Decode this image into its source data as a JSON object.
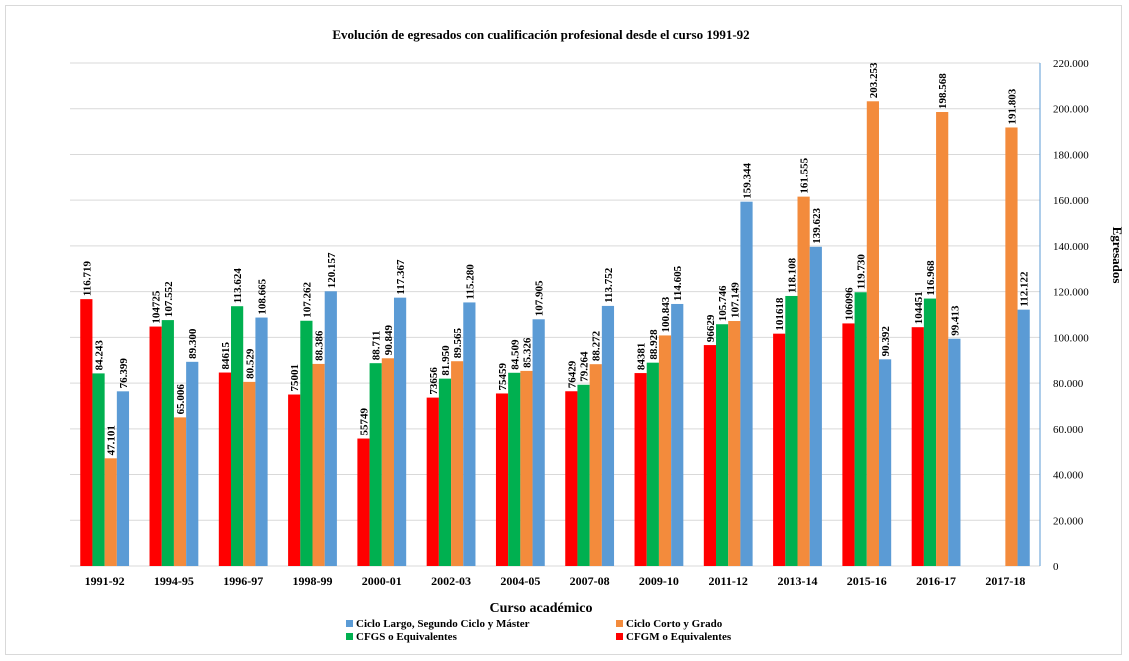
{
  "chart_data": {
    "type": "bar",
    "title": "Evolución de egresados con cualificación profesional desde el curso 1991-92",
    "xlabel": "Curso académico",
    "ylabel": "Egresados",
    "ylim": [
      0,
      220000
    ],
    "yticks": [
      "0",
      "20.000",
      "40.000",
      "60.000",
      "80.000",
      "100.000",
      "120.000",
      "140.000",
      "160.000",
      "180.000",
      "200.000",
      "220.000"
    ],
    "grid": true,
    "legend_position": "bottom",
    "categories": [
      "1991-92",
      "1994-95",
      "1996-97",
      "1998-99",
      "2000-01",
      "2002-03",
      "2004-05",
      "2007-08",
      "2009-10",
      "2011-12",
      "2013-14",
      "2015-16",
      "2016-17",
      "2017-18"
    ],
    "series": [
      {
        "name": "CFGM o Equivalentes",
        "color": "#ff0000",
        "values": [
          116719,
          104725,
          84615,
          75001,
          55749,
          73656,
          75459,
          76429,
          84381,
          96629,
          101618,
          106096,
          104451,
          null
        ],
        "labels": [
          "116.719",
          "104725",
          "84615",
          "75001",
          "55749",
          "73656",
          "75459",
          "76429",
          "84381",
          "96629",
          "101618",
          "106096",
          "104451",
          ""
        ]
      },
      {
        "name": "CFGS o Equivalentes",
        "color": "#00b050",
        "values": [
          84243,
          107552,
          113624,
          107262,
          88711,
          81950,
          84509,
          79264,
          88928,
          105746,
          118108,
          119730,
          116968,
          null
        ],
        "labels": [
          "84.243",
          "107.552",
          "113.624",
          "107.262",
          "88.711",
          "81.950",
          "84.509",
          "79.264",
          "88.928",
          "105.746",
          "118.108",
          "119.730",
          "116.968",
          ""
        ]
      },
      {
        "name": "Ciclo Corto y Grado",
        "color": "#f38b3c",
        "values": [
          47101,
          65006,
          80529,
          88386,
          90849,
          89565,
          85326,
          88272,
          100843,
          107149,
          161555,
          203253,
          198568,
          191803
        ],
        "labels": [
          "47.101",
          "65.006",
          "80.529",
          "88.386",
          "90.849",
          "89.565",
          "85.326",
          "88.272",
          "100.843",
          "107.149",
          "161.555",
          "203.253",
          "198.568",
          "191.803"
        ]
      },
      {
        "name": "Ciclo Largo, Segundo Ciclo y Máster",
        "color": "#5b9bd5",
        "values": [
          76399,
          89300,
          108665,
          120157,
          117367,
          115280,
          107905,
          113752,
          114605,
          159344,
          139623,
          90392,
          99413,
          112122
        ],
        "labels": [
          "76.399",
          "89.300",
          "108.665",
          "120.157",
          "117.367",
          "115.280",
          "107.905",
          "113.752",
          "114.605",
          "159.344",
          "139.623",
          "90.392",
          "99.413",
          "112.122"
        ]
      }
    ],
    "legend_order": [
      "Ciclo Largo, Segundo Ciclo y Máster",
      "Ciclo Corto y Grado",
      "CFGS o Equivalentes",
      "CFGM o Equivalentes"
    ]
  }
}
